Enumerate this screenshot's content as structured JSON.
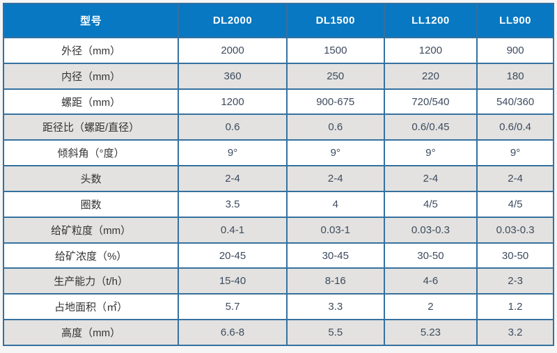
{
  "colors": {
    "header_bg": "#0878c2",
    "header_text": "#ffffff",
    "row_bg": "#ffffff",
    "row_alt_bg": "#e3e2e0",
    "border": "#35719f",
    "label_text": "#333333",
    "value_text": "#3d4b5e",
    "page_bg": "#f5f5f5"
  },
  "table": {
    "header": [
      "型号",
      "DL2000",
      "DL1500",
      "LL1200",
      "LL900"
    ],
    "rows": [
      {
        "label": "外径（mm）",
        "values": [
          "2000",
          "1500",
          "1200",
          "900"
        ]
      },
      {
        "label": "内径（mm）",
        "values": [
          "360",
          "250",
          "220",
          "180"
        ]
      },
      {
        "label": "螺距（mm）",
        "values": [
          "1200",
          "900-675",
          "720/540",
          "540/360"
        ]
      },
      {
        "label": "距径比（螺距/直径）",
        "values": [
          "0.6",
          "0.6",
          "0.6/0.45",
          "0.6/0.4"
        ]
      },
      {
        "label": "倾斜角（°度）",
        "values": [
          "9°",
          "9°",
          "9°",
          "9°"
        ]
      },
      {
        "label": "头数",
        "values": [
          "2-4",
          "2-4",
          "2-4",
          "2-4"
        ]
      },
      {
        "label": "圈数",
        "values": [
          "3.5",
          "4",
          "4/5",
          "4/5"
        ]
      },
      {
        "label": "给矿粒度（mm）",
        "values": [
          "0.4-1",
          "0.03-1",
          "0.03-0.3",
          "0.03-0.3"
        ]
      },
      {
        "label": "给矿浓度（%）",
        "values": [
          "20-45",
          "30-45",
          "30-50",
          "30-50"
        ]
      },
      {
        "label": "生产能力（t/h）",
        "values": [
          "15-40",
          "8-16",
          "4-6",
          "2-3"
        ]
      },
      {
        "label": "占地面积（㎡）",
        "values": [
          "5.7",
          "3.3",
          "2",
          "1.2"
        ]
      },
      {
        "label": "高度（mm）",
        "values": [
          "6.6-8",
          "5.5",
          "5.23",
          "3.2"
        ]
      }
    ]
  }
}
